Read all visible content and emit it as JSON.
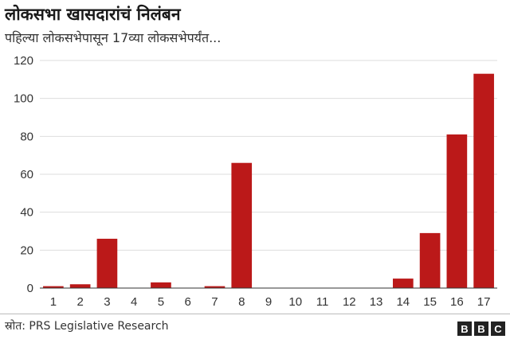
{
  "header": {
    "title": "लोकसभा खासदारांचं निलंबन",
    "subtitle": "पहिल्या लोकसभेपासून 17व्या लोकसभेपर्यंत..."
  },
  "footer": {
    "source": "स्रोत: PRS Legislative Research",
    "logo_letters": [
      "B",
      "B",
      "C"
    ]
  },
  "colors": {
    "bar": "#bb1919",
    "grid": "#dddddd",
    "axis": "#333333"
  },
  "chart_data": {
    "type": "bar",
    "title": "लोकसभा खासदारांचं निलंबन",
    "subtitle": "पहिल्या लोकसभेपासून 17व्या लोकसभेपर्यंत...",
    "categories": [
      "1",
      "2",
      "3",
      "4",
      "5",
      "6",
      "7",
      "8",
      "9",
      "10",
      "11",
      "12",
      "13",
      "14",
      "15",
      "16",
      "17"
    ],
    "values": [
      1,
      2,
      26,
      0,
      3,
      0,
      1,
      66,
      0,
      0,
      0,
      0,
      0,
      5,
      29,
      81,
      113
    ],
    "ylim": [
      0,
      120
    ],
    "yticks": [
      0,
      20,
      40,
      60,
      80,
      100,
      120
    ],
    "grid": true,
    "xlabel": "",
    "ylabel": ""
  }
}
